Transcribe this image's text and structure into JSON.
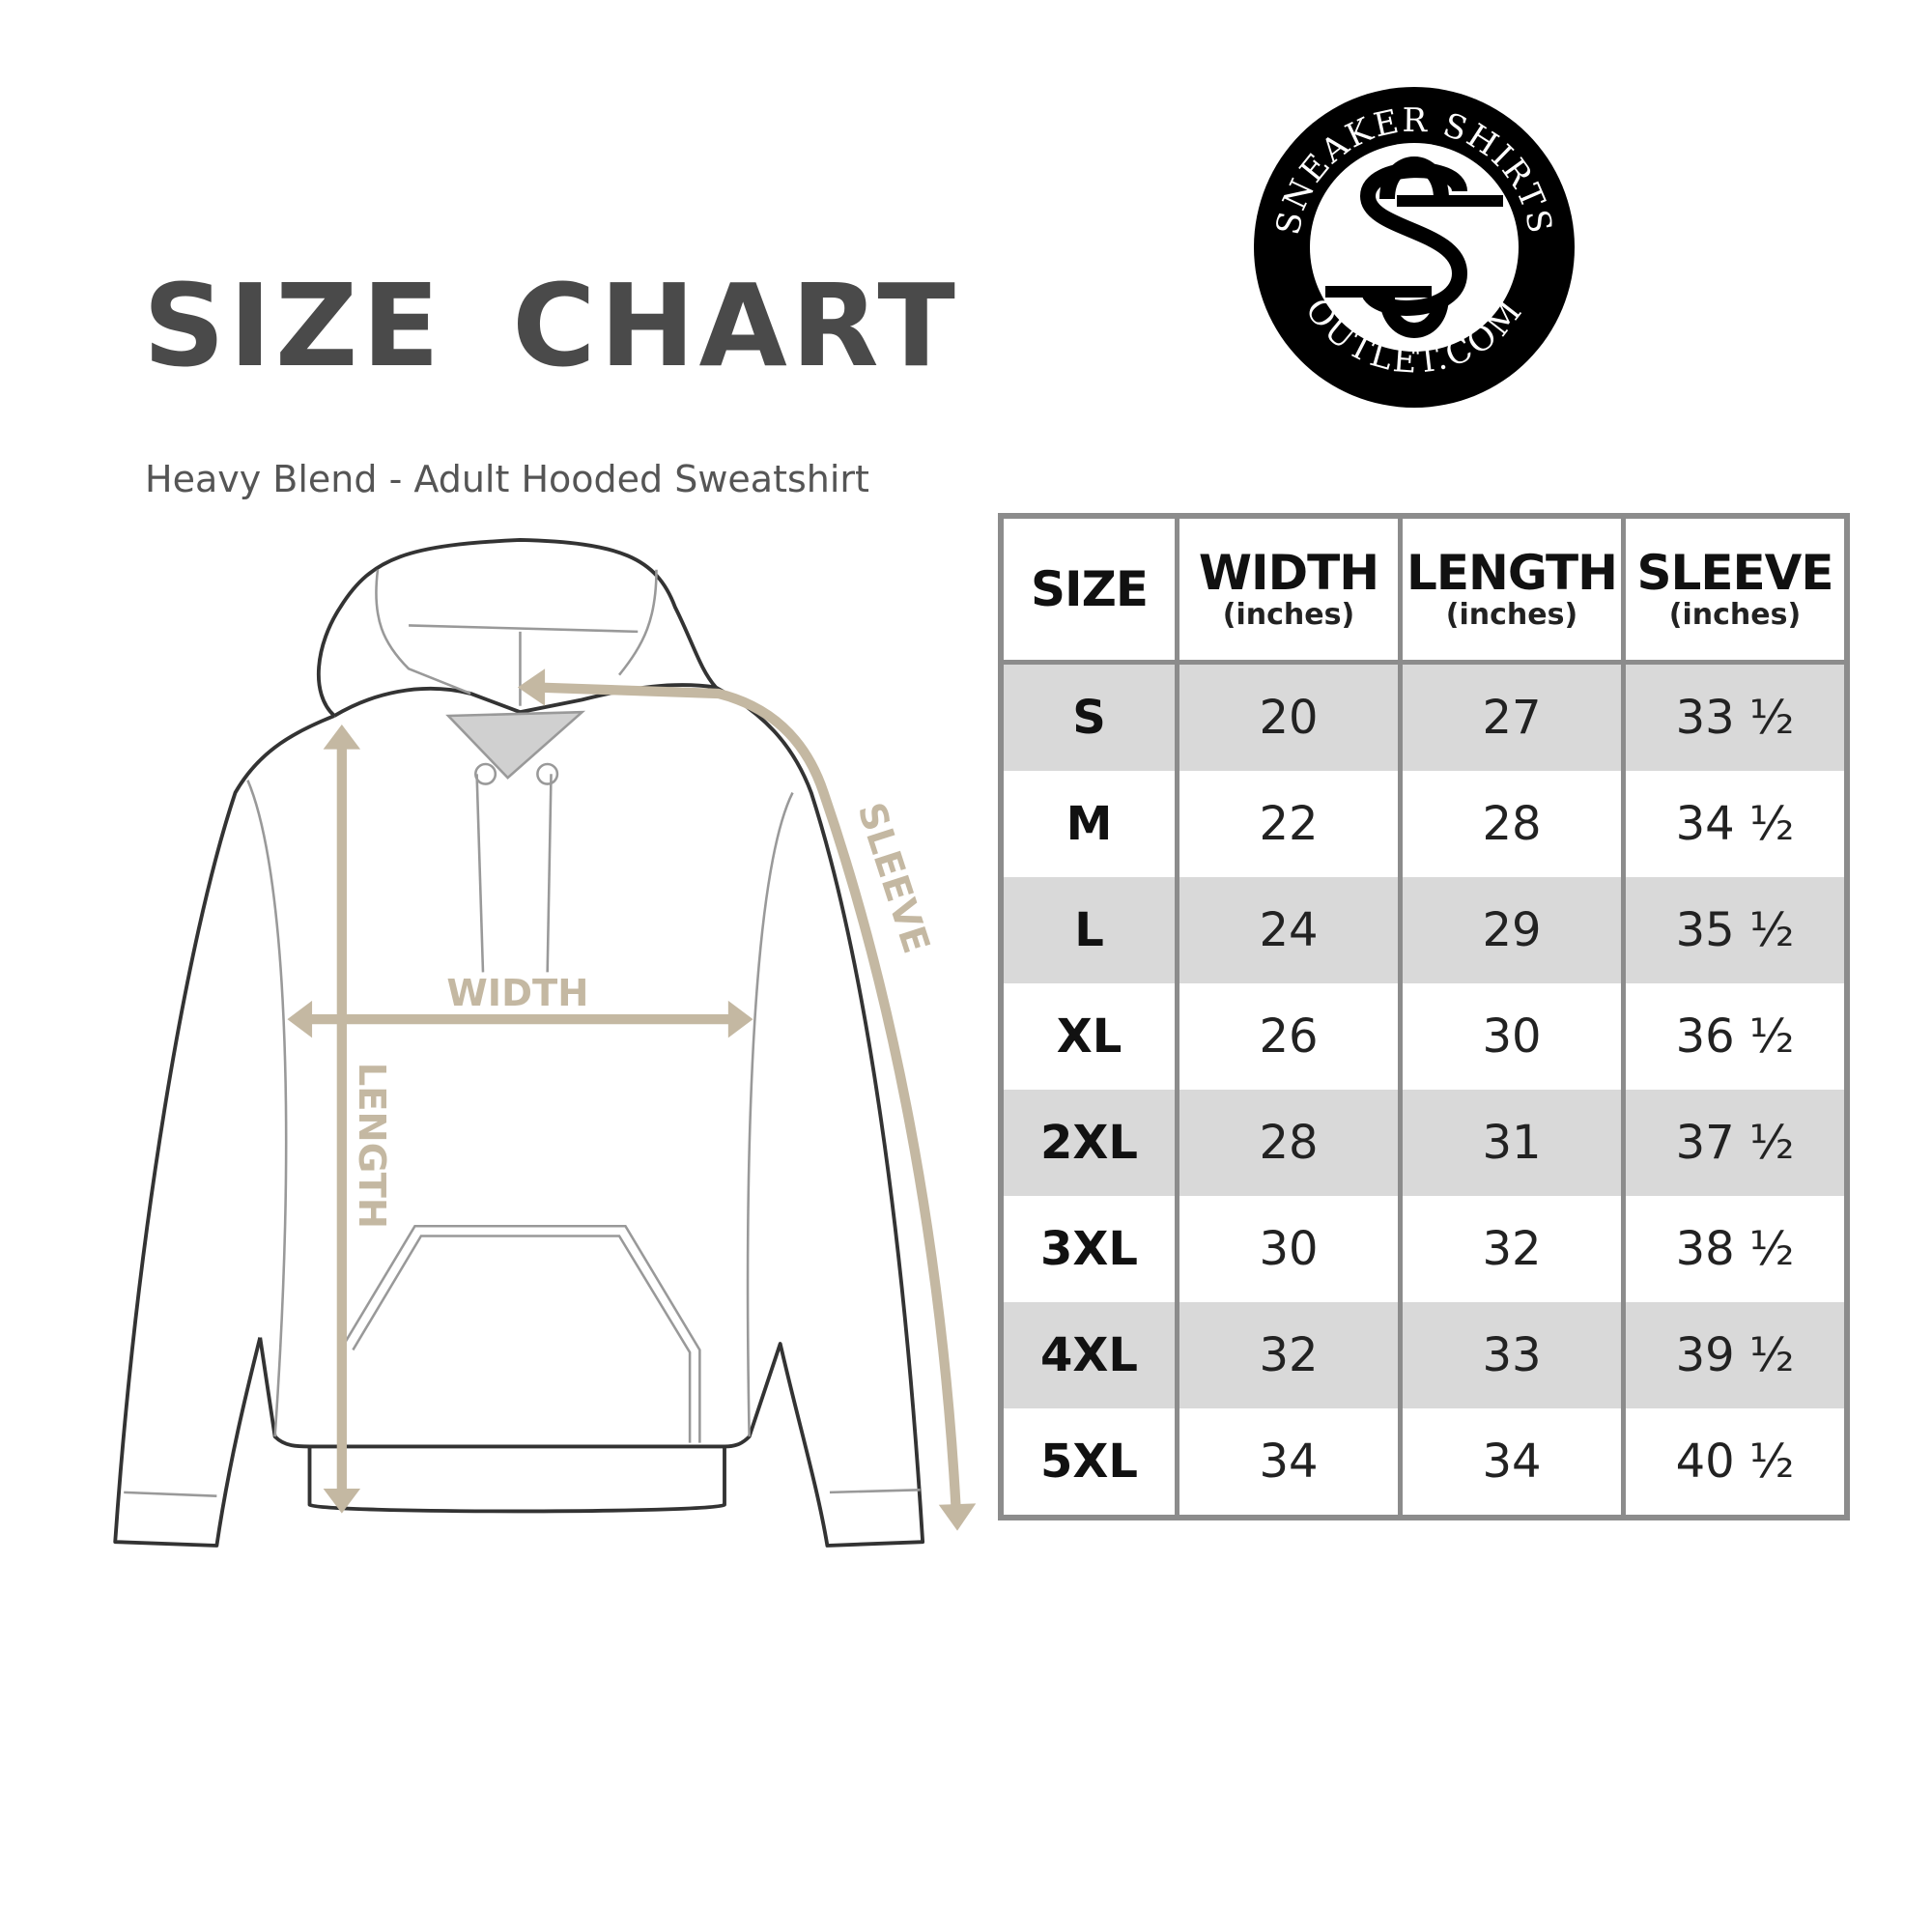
{
  "title": "SIZE CHART",
  "subtitle": "Heavy Blend - Adult Hooded Sweatshirt",
  "logo": {
    "top_text": "SNEAKER SHIRTS",
    "bottom_text": "OUTLET.COM",
    "monogram": "SS"
  },
  "diagram": {
    "width_label": "WIDTH",
    "length_label": "LENGTH",
    "sleeve_label": "SLEEVE",
    "arrow_color": "#c4b8a2"
  },
  "table": {
    "headers": [
      {
        "label": "SIZE",
        "unit": ""
      },
      {
        "label": "WIDTH",
        "unit": "(inches)"
      },
      {
        "label": "LENGTH",
        "unit": "(inches)"
      },
      {
        "label": "SLEEVE",
        "unit": "(inches)"
      }
    ],
    "rows": [
      [
        "S",
        "20",
        "27",
        "33 ½"
      ],
      [
        "M",
        "22",
        "28",
        "34 ½"
      ],
      [
        "L",
        "24",
        "29",
        "35 ½"
      ],
      [
        "XL",
        "26",
        "30",
        "36 ½"
      ],
      [
        "2XL",
        "28",
        "31",
        "37 ½"
      ],
      [
        "3XL",
        "30",
        "32",
        "38 ½"
      ],
      [
        "4XL",
        "32",
        "33",
        "39 ½"
      ],
      [
        "5XL",
        "34",
        "34",
        "40 ½"
      ]
    ],
    "shade_color": "#d9d9d9"
  }
}
